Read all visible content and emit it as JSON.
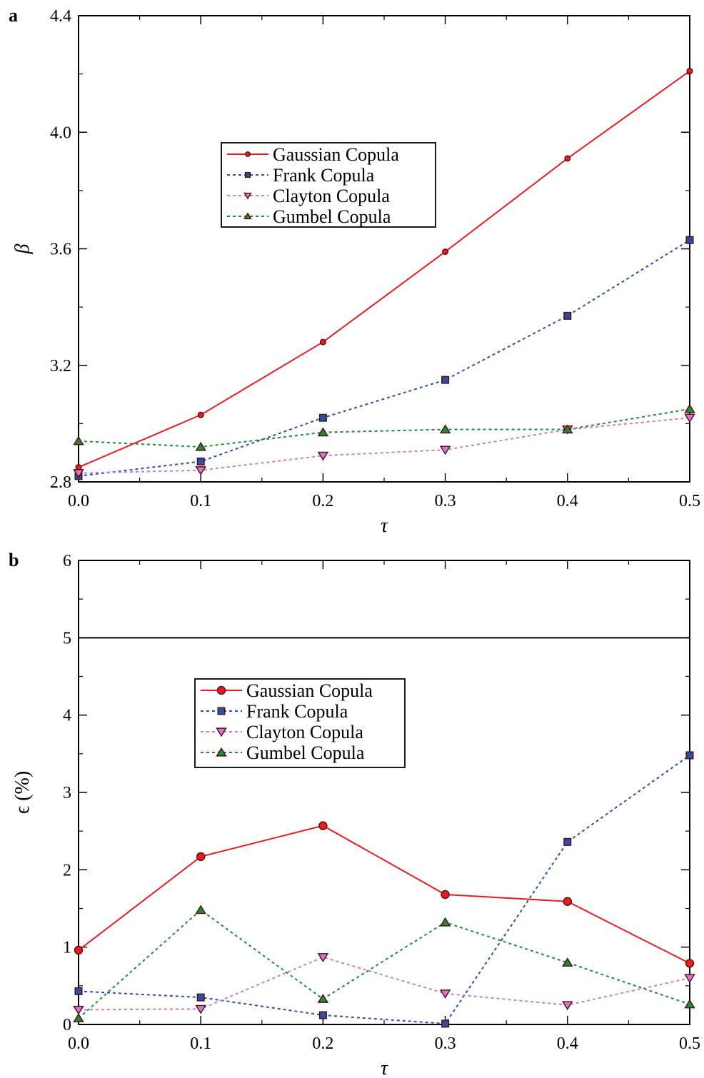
{
  "chart_data": [
    {
      "panel": "a",
      "type": "line",
      "xlabel": "τ",
      "ylabel": "β",
      "xlim": [
        0.0,
        0.5
      ],
      "ylim": [
        2.8,
        4.4
      ],
      "xticks": [
        "0.0",
        "0.1",
        "0.2",
        "0.3",
        "0.4",
        "0.5"
      ],
      "yticks": [
        "2.8",
        "3.2",
        "3.6",
        "4.0",
        "4.4"
      ],
      "x": [
        0.0,
        0.1,
        0.2,
        0.3,
        0.4,
        0.5
      ],
      "legend_position": "upper-middle",
      "series": [
        {
          "name": "Gaussian Copula",
          "values": [
            2.85,
            3.03,
            3.28,
            3.59,
            3.91,
            4.21
          ],
          "color": "#e31e24",
          "dash": "solid",
          "marker": "circle-small"
        },
        {
          "name": "Frank Copula",
          "values": [
            2.82,
            2.87,
            3.02,
            3.15,
            3.37,
            3.63
          ],
          "color": "#2b4fa3",
          "dash": "dotted",
          "marker": "square"
        },
        {
          "name": "Clayton Copula",
          "values": [
            2.83,
            2.84,
            2.89,
            2.91,
            2.98,
            3.02
          ],
          "color": "#c77dcb",
          "dash": "dotted",
          "marker": "triangle-down"
        },
        {
          "name": "Gumbel Copula",
          "values": [
            2.94,
            2.92,
            2.97,
            2.98,
            2.98,
            3.05
          ],
          "color": "#1e8a3c",
          "dash": "dotted",
          "marker": "triangle-up"
        }
      ]
    },
    {
      "panel": "b",
      "type": "line",
      "xlabel": "τ",
      "ylabel": "ϵ (%)",
      "xlim": [
        0.0,
        0.5
      ],
      "ylim": [
        0,
        6
      ],
      "xticks": [
        "0.0",
        "0.1",
        "0.2",
        "0.3",
        "0.4",
        "0.5"
      ],
      "yticks": [
        "0",
        "1",
        "2",
        "3",
        "4",
        "5",
        "6"
      ],
      "x": [
        0.0,
        0.1,
        0.2,
        0.3,
        0.4,
        0.5
      ],
      "reference_line": 5,
      "legend_position": "upper-middle",
      "series": [
        {
          "name": "Gaussian Copula",
          "values": [
            0.96,
            2.17,
            2.57,
            1.68,
            1.59,
            0.79
          ],
          "color": "#e31e24",
          "dash": "solid",
          "marker": "circle"
        },
        {
          "name": "Frank Copula",
          "values": [
            0.43,
            0.35,
            0.12,
            0.01,
            2.36,
            3.48
          ],
          "color": "#2b4fa3",
          "dash": "dotted",
          "marker": "square"
        },
        {
          "name": "Clayton Copula",
          "values": [
            0.19,
            0.2,
            0.87,
            0.4,
            0.25,
            0.6
          ],
          "color": "#c77dcb",
          "dash": "dotted",
          "marker": "triangle-down"
        },
        {
          "name": "Gumbel Copula",
          "values": [
            0.08,
            1.48,
            0.33,
            1.32,
            0.8,
            0.26
          ],
          "color": "#1e8a3c",
          "dash": "dotted",
          "marker": "triangle-up"
        }
      ]
    }
  ]
}
